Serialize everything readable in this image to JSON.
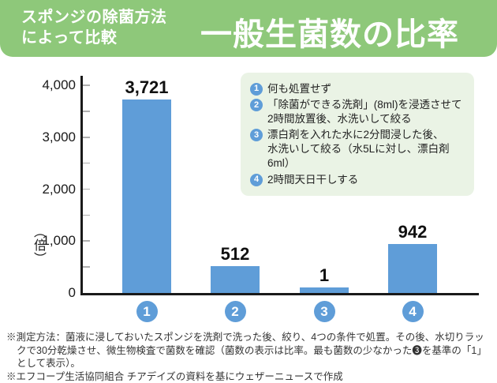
{
  "header": {
    "subtitle_line1": "スポンジの除菌方法",
    "subtitle_line2": "によって比較",
    "title": "一般生菌数の比率"
  },
  "chart_data": {
    "type": "bar",
    "title": "一般生菌数の比率",
    "ylabel": "（倍）",
    "ylim": [
      0,
      4000
    ],
    "yticks": [
      0,
      1000,
      2000,
      3000,
      4000
    ],
    "ytick_labels": [
      "0",
      "1,000",
      "2,000",
      "3,000",
      "4,000"
    ],
    "minor_tick_step": 500,
    "categories": [
      "1",
      "2",
      "3",
      "4"
    ],
    "values": [
      3721,
      512,
      1,
      942
    ],
    "value_labels": [
      "3,721",
      "512",
      "1",
      "942"
    ],
    "grid": false,
    "legend_position": "upper right"
  },
  "legend": {
    "items": [
      {
        "num": "1",
        "text": "何も処置せず"
      },
      {
        "num": "2",
        "text": "「除菌ができる洗剤」(8ml)を浸透させて\n2時間放置後、水洗いして絞る"
      },
      {
        "num": "3",
        "text": "漂白剤を入れた水に2分間浸した後、\n水洗いして絞る（水5Lに対し、漂白剤6ml）"
      },
      {
        "num": "4",
        "text": "2時間天日干しする"
      }
    ]
  },
  "footnotes": [
    "※測定方法：菌液に浸しておいたスポンジを洗剤で洗った後、絞り、4つの条件で処置。その後、水切りラックで30分乾燥させ、微生物検査で菌数を確認（菌数の表示は比率。最も菌数の少なかった❸を基準の「1」として表示）。",
    "※エフコープ生活協同組合 チアデイズの資料を基にウェザーニュースで作成"
  ],
  "colors": {
    "banner_green": "#8ec87a",
    "legend_bg": "#eaf3e5",
    "bar_blue": "#5f9dd8",
    "axis_black": "#1a1a1a",
    "tick_gray": "#b0b0b0"
  }
}
